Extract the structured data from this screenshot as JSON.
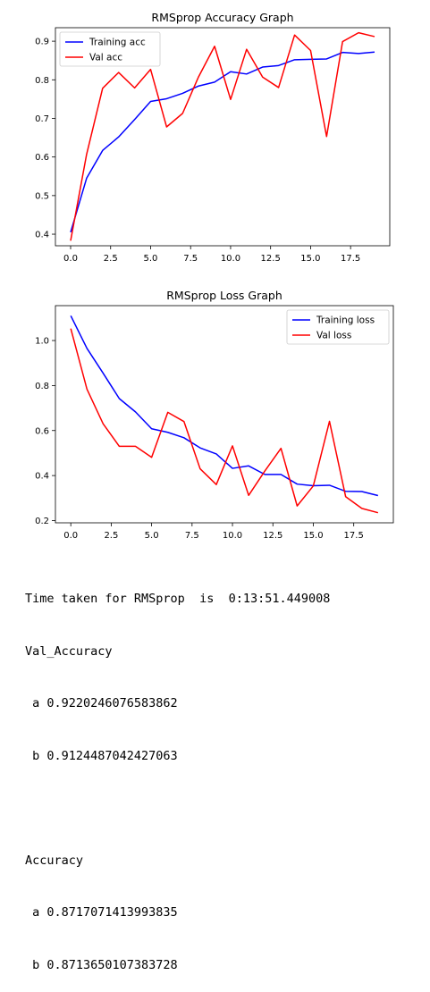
{
  "chart_data": [
    {
      "type": "line",
      "title": "RMSprop Accuracy Graph",
      "xlabel": "",
      "ylabel": "",
      "x": [
        0,
        1,
        2,
        3,
        4,
        5,
        6,
        7,
        8,
        9,
        10,
        11,
        12,
        13,
        14,
        15,
        16,
        17,
        18,
        19
      ],
      "xlim": [
        -0.95,
        19.95
      ],
      "ylim": [
        0.37,
        0.935
      ],
      "xticks": [
        "0.0",
        "2.5",
        "5.0",
        "7.5",
        "10.0",
        "12.5",
        "15.0",
        "17.5"
      ],
      "xtick_values": [
        0,
        2.5,
        5,
        7.5,
        10,
        12.5,
        15,
        17.5
      ],
      "yticks": [
        "0.4",
        "0.5",
        "0.6",
        "0.7",
        "0.8",
        "0.9"
      ],
      "ytick_values": [
        0.4,
        0.5,
        0.6,
        0.7,
        0.8,
        0.9
      ],
      "legend_position": "top-left",
      "grid": false,
      "series": [
        {
          "name": "Training acc",
          "color": "#0000ff",
          "values": [
            0.405,
            0.545,
            0.617,
            0.652,
            0.697,
            0.744,
            0.751,
            0.765,
            0.784,
            0.794,
            0.821,
            0.815,
            0.833,
            0.837,
            0.852,
            0.853,
            0.854,
            0.871,
            0.868,
            0.872
          ]
        },
        {
          "name": "Val acc",
          "color": "#ff0000",
          "values": [
            0.383,
            0.607,
            0.778,
            0.819,
            0.779,
            0.827,
            0.678,
            0.713,
            0.808,
            0.887,
            0.749,
            0.879,
            0.807,
            0.78,
            0.916,
            0.876,
            0.653,
            0.899,
            0.922,
            0.912
          ]
        }
      ]
    },
    {
      "type": "line",
      "title": "RMSprop Loss Graph",
      "xlabel": "",
      "ylabel": "",
      "x": [
        0,
        1,
        2,
        3,
        4,
        5,
        6,
        7,
        8,
        9,
        10,
        11,
        12,
        13,
        14,
        15,
        16,
        17,
        18,
        19
      ],
      "xlim": [
        -0.95,
        19.95
      ],
      "ylim": [
        0.19,
        1.155
      ],
      "xticks": [
        "0.0",
        "2.5",
        "5.0",
        "7.5",
        "10.0",
        "12.5",
        "15.0",
        "17.5"
      ],
      "xtick_values": [
        0,
        2.5,
        5,
        7.5,
        10,
        12.5,
        15,
        17.5
      ],
      "yticks": [
        "0.2",
        "0.4",
        "0.6",
        "0.8",
        "1.0"
      ],
      "ytick_values": [
        0.2,
        0.4,
        0.6,
        0.8,
        1.0
      ],
      "legend_position": "top-right",
      "grid": false,
      "series": [
        {
          "name": "Training loss",
          "color": "#0000ff",
          "values": [
            1.11,
            0.965,
            0.855,
            0.742,
            0.683,
            0.608,
            0.592,
            0.568,
            0.523,
            0.496,
            0.432,
            0.443,
            0.405,
            0.405,
            0.362,
            0.355,
            0.357,
            0.33,
            0.329,
            0.311
          ]
        },
        {
          "name": "Val loss",
          "color": "#ff0000",
          "values": [
            1.053,
            0.784,
            0.63,
            0.53,
            0.53,
            0.481,
            0.681,
            0.64,
            0.43,
            0.36,
            0.532,
            0.312,
            0.42,
            0.521,
            0.265,
            0.354,
            0.641,
            0.306,
            0.254,
            0.235
          ]
        }
      ]
    }
  ],
  "output": {
    "time_line": "Time taken for RMSprop  is  0:13:51.449008",
    "val_acc_heading": "Val_Accuracy",
    "val_acc_a": " a 0.9220246076583862",
    "val_acc_b": " b 0.9124487042427063",
    "acc_heading": "Accuracy",
    "acc_a": " a 0.8717071413993835",
    "acc_b": " b 0.8713650107383728"
  }
}
